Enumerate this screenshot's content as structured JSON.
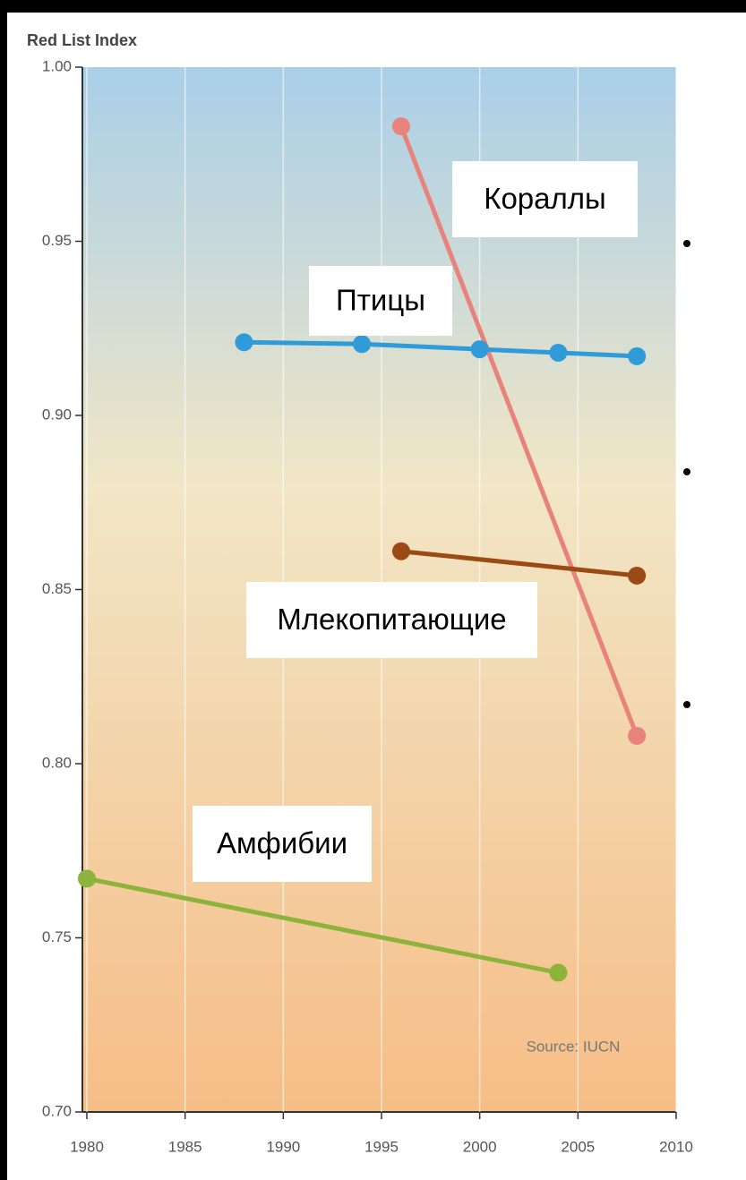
{
  "chart_data": {
    "type": "line",
    "ylabel": "Red List Index",
    "series": [
      {
        "name": "Кораллы",
        "color": "#e8837b",
        "x": [
          1996,
          2008
        ],
        "values": [
          0.983,
          0.808
        ]
      },
      {
        "name": "Птицы",
        "color": "#2f9bd8",
        "x": [
          1988,
          1994,
          2000,
          2004,
          2008
        ],
        "values": [
          0.921,
          0.9205,
          0.919,
          0.918,
          0.917
        ]
      },
      {
        "name": "Млекопитающие",
        "color": "#9a4a12",
        "x": [
          1996,
          2008
        ],
        "values": [
          0.861,
          0.854
        ]
      },
      {
        "name": "Амфибии",
        "color": "#8db33a",
        "x": [
          1980,
          2004
        ],
        "values": [
          0.767,
          0.74
        ]
      }
    ],
    "xlim": [
      1980,
      2010
    ],
    "xticks": [
      1980,
      1985,
      1990,
      1995,
      2000,
      2005,
      2010
    ],
    "ylim": [
      0.7,
      1
    ],
    "yticks": [
      {
        "value": 0.7,
        "label": "0.70"
      },
      0.75,
      {
        "value": 0.8,
        "label": "0.80"
      },
      0.85,
      {
        "value": 0.9,
        "label": "0.90"
      },
      0.95,
      {
        "value": 1,
        "label": "1.00"
      }
    ],
    "grid": true,
    "annotations": [
      "Source: IUCN"
    ]
  }
}
